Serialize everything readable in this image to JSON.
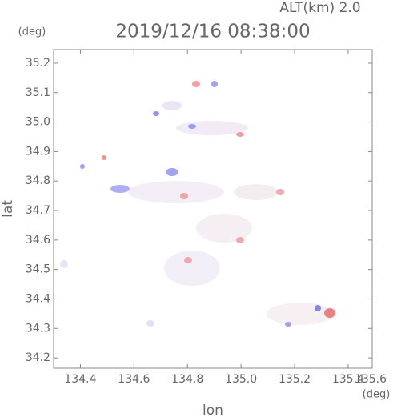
{
  "chart_data": {
    "type": "field",
    "title": "2019/12/16 08:38:00",
    "subtitle": "ALT(km)  2.0",
    "y_unit": "(deg)",
    "x_unit": "(deg)",
    "xlabel": "lon",
    "ylabel": "lat",
    "xlim": [
      134.3,
      135.49
    ],
    "ylim": [
      34.165,
      35.246
    ],
    "xticks": [
      134.4,
      134.6,
      134.8,
      {
        "value": 135.0,
        "label": "135.0"
      },
      135.2,
      135.4,
      135.6
    ],
    "yticks": [
      {
        "value": 34.2,
        "label": "34.2"
      },
      {
        "value": 34.3,
        "label": "34.3"
      },
      {
        "value": 34.4,
        "label": "34.4"
      },
      {
        "value": 34.5,
        "label": "34.5"
      },
      {
        "value": 34.6,
        "label": "34.6"
      },
      {
        "value": 34.7,
        "label": "34.7"
      },
      {
        "value": 34.8,
        "label": "34.8"
      },
      {
        "value": 34.9,
        "label": "34.9"
      },
      {
        "value": 35.0,
        "label": "35.0"
      },
      {
        "value": 35.1,
        "label": "35.1"
      },
      {
        "value": 35.2,
        "label": "35.2"
      }
    ]
  }
}
